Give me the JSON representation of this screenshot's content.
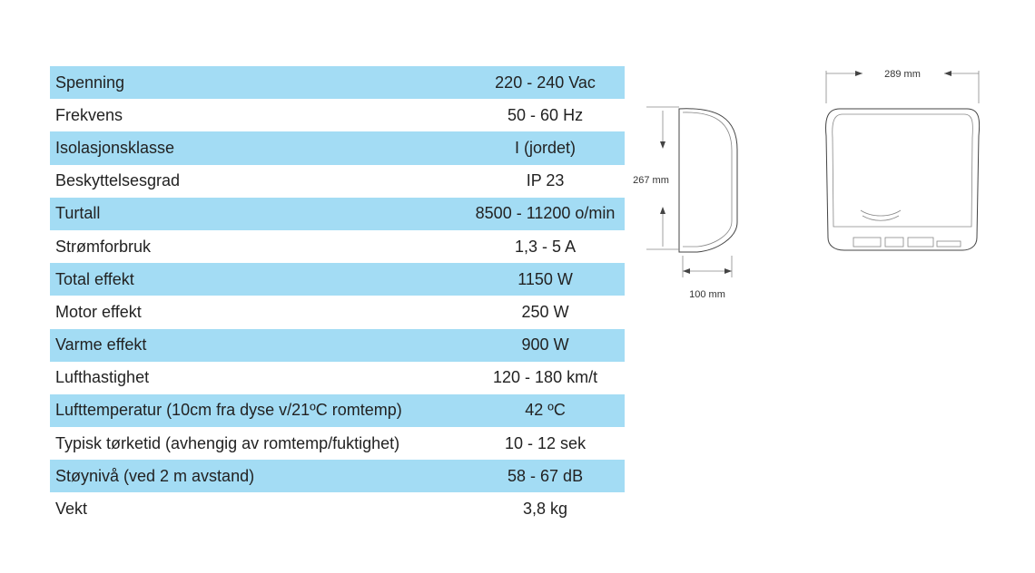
{
  "table": {
    "rows": [
      [
        "Spenning",
        "220 - 240 Vac"
      ],
      [
        "Frekvens",
        "50 - 60 Hz"
      ],
      [
        "Isolasjonsklasse",
        "I (jordet)"
      ],
      [
        "Beskyttelsesgrad",
        "IP 23"
      ],
      [
        "Turtall",
        "8500 - 11200 o/min"
      ],
      [
        "Strømforbruk",
        "1,3 - 5 A"
      ],
      [
        "Total effekt",
        "1150 W"
      ],
      [
        "Motor effekt",
        "250 W"
      ],
      [
        "Varme effekt",
        "900 W"
      ],
      [
        "Lufthastighet",
        "120 - 180 km/t"
      ],
      [
        "Lufttemperatur (10cm fra dyse v/21ºC romtemp)",
        "42 ºC"
      ],
      [
        "Typisk tørketid (avhengig av romtemp/fuktighet)",
        "10 - 12 sek"
      ],
      [
        "Støynivå (ved 2 m avstand)",
        "58 - 67 dB"
      ],
      [
        "Vekt",
        "3,8 kg"
      ]
    ]
  },
  "dimensions": {
    "height": "267 mm",
    "depth": "100 mm",
    "width": "289 mm"
  }
}
